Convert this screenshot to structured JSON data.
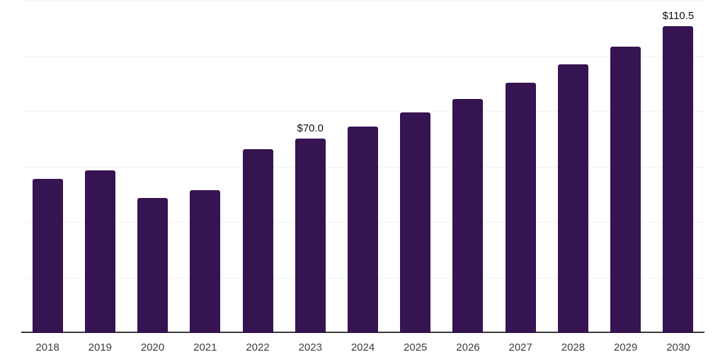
{
  "chart_data": {
    "type": "bar",
    "title": "",
    "xlabel": "",
    "ylabel": "",
    "categories": [
      "2018",
      "2019",
      "2020",
      "2021",
      "2022",
      "2023",
      "2024",
      "2025",
      "2026",
      "2027",
      "2028",
      "2029",
      "2030"
    ],
    "values": [
      55.5,
      58.5,
      48.7,
      51.5,
      66.2,
      70.0,
      74.5,
      79.4,
      84.3,
      90.1,
      96.7,
      103.1,
      110.5
    ],
    "data_labels": [
      {
        "category": "2023",
        "text": "$70.0"
      },
      {
        "category": "2030",
        "text": "$110.5"
      }
    ],
    "ylim": [
      0,
      120
    ],
    "grid_step": 20,
    "grid": "horizontal",
    "y_tick_labels_shown": false,
    "legend_position": "none",
    "bar_color": "#361351",
    "gridline_color": "#f2f2f2",
    "axis_line_color": "#3a3a3a",
    "tick_label_color": "#3d3d3d",
    "data_label_color": "#111111",
    "background_color": "#ffffff"
  }
}
